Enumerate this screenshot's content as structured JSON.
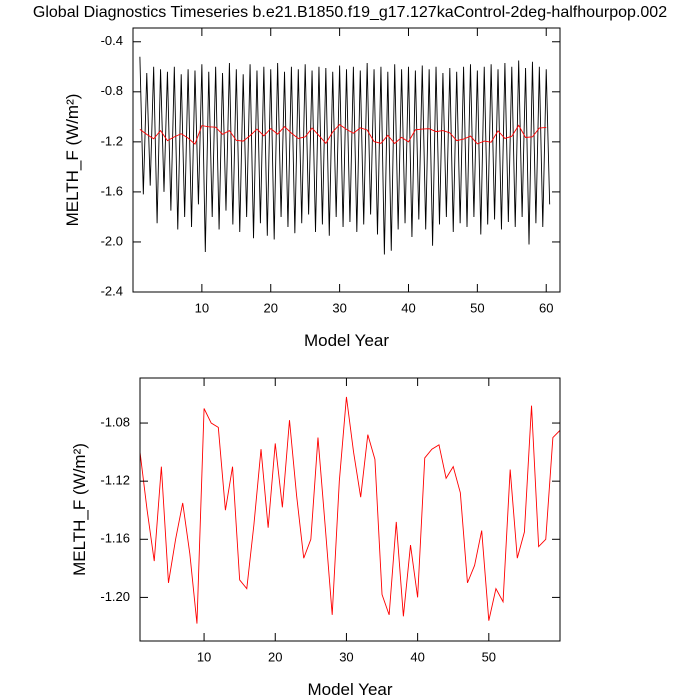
{
  "chart_data": [
    {
      "type": "line",
      "title": "Global Diagnostics Timeseries b.e21.B1850.f19_g17.127kaControl-2deg-halfhourpop.002",
      "xlabel": "Model Year",
      "ylabel": "MELTH_F (W/m²)",
      "xlim": [
        0,
        62
      ],
      "xticks": [
        10,
        20,
        30,
        40,
        50,
        60
      ],
      "ylim": [
        -2.4,
        -0.29
      ],
      "yticks": [
        -2.4,
        {
          "value": -2.0,
          "label": "-2.0"
        },
        -1.6,
        -1.2,
        -0.8,
        -0.4
      ],
      "series": [
        {
          "color": "#000000",
          "x": [
            1,
            1.5,
            2,
            2.5,
            3,
            3.5,
            4,
            4.5,
            5,
            5.5,
            6,
            6.5,
            7,
            7.5,
            8,
            8.5,
            9,
            9.5,
            10,
            10.5,
            11,
            11.5,
            12,
            12.5,
            13,
            13.5,
            14,
            14.5,
            15,
            15.5,
            16,
            16.5,
            17,
            17.5,
            18,
            18.5,
            19,
            19.5,
            20,
            20.5,
            21,
            21.5,
            22,
            22.5,
            23,
            23.5,
            24,
            24.5,
            25,
            25.5,
            26,
            26.5,
            27,
            27.5,
            28,
            28.5,
            29,
            29.5,
            30,
            30.5,
            31,
            31.5,
            32,
            32.5,
            33,
            33.5,
            34,
            34.5,
            35,
            35.5,
            36,
            36.5,
            37,
            37.5,
            38,
            38.5,
            39,
            39.5,
            40,
            40.5,
            41,
            41.5,
            42,
            42.5,
            43,
            43.5,
            44,
            44.5,
            45,
            45.5,
            46,
            46.5,
            47,
            47.5,
            48,
            48.5,
            49,
            49.5,
            50,
            50.5,
            51,
            51.5,
            52,
            52.5,
            53,
            53.5,
            54,
            54.5,
            55,
            55.5,
            56,
            56.5,
            57,
            57.5,
            58,
            58.5,
            59,
            59.5,
            60,
            60.5
          ],
          "values": [
            -0.52,
            -1.62,
            -0.65,
            -1.55,
            -0.6,
            -1.85,
            -0.62,
            -1.6,
            -0.64,
            -1.75,
            -0.6,
            -1.9,
            -0.66,
            -1.8,
            -0.62,
            -1.88,
            -0.63,
            -1.7,
            -0.58,
            -2.08,
            -0.64,
            -1.8,
            -0.6,
            -1.9,
            -0.65,
            -1.75,
            -0.57,
            -1.86,
            -0.62,
            -1.92,
            -0.66,
            -1.8,
            -0.58,
            -1.97,
            -0.63,
            -1.85,
            -0.6,
            -1.95,
            -0.62,
            -1.98,
            -0.57,
            -1.8,
            -0.64,
            -1.88,
            -0.6,
            -1.93,
            -0.62,
            -1.85,
            -0.58,
            -1.78,
            -0.63,
            -1.92,
            -0.6,
            -1.86,
            -0.61,
            -1.95,
            -0.64,
            -1.8,
            -0.59,
            -1.88,
            -0.62,
            -1.84,
            -0.6,
            -1.92,
            -0.63,
            -1.86,
            -0.57,
            -1.78,
            -0.62,
            -1.94,
            -0.6,
            -2.1,
            -0.64,
            -2.07,
            -0.58,
            -1.9,
            -0.62,
            -1.85,
            -0.6,
            -1.96,
            -0.63,
            -1.82,
            -0.59,
            -1.9,
            -0.62,
            -2.03,
            -0.6,
            -1.86,
            -0.65,
            -1.8,
            -0.61,
            -1.92,
            -0.64,
            -1.85,
            -0.6,
            -1.88,
            -0.58,
            -1.8,
            -0.63,
            -1.94,
            -0.6,
            -1.86,
            -0.58,
            -1.82,
            -0.62,
            -1.9,
            -0.57,
            -1.84,
            -0.6,
            -1.88,
            -0.55,
            -1.8,
            -0.61,
            -2.02,
            -0.56,
            -1.85,
            -0.6,
            -1.88,
            -0.62,
            -1.7
          ]
        },
        {
          "color": "#ff0000",
          "x": [
            1,
            2,
            3,
            4,
            5,
            6,
            7,
            8,
            9,
            10,
            11,
            12,
            13,
            14,
            15,
            16,
            17,
            18,
            19,
            20,
            21,
            22,
            23,
            24,
            25,
            26,
            27,
            28,
            29,
            30,
            31,
            32,
            33,
            34,
            35,
            36,
            37,
            38,
            39,
            40,
            41,
            42,
            43,
            44,
            45,
            46,
            47,
            48,
            49,
            50,
            51,
            52,
            53,
            54,
            55,
            56,
            57,
            58,
            59,
            60
          ],
          "values": [
            -1.1,
            -1.14,
            -1.175,
            -1.11,
            -1.19,
            -1.16,
            -1.135,
            -1.17,
            -1.218,
            -1.07,
            -1.08,
            -1.083,
            -1.14,
            -1.11,
            -1.188,
            -1.194,
            -1.15,
            -1.098,
            -1.152,
            -1.094,
            -1.138,
            -1.078,
            -1.13,
            -1.173,
            -1.16,
            -1.09,
            -1.15,
            -1.212,
            -1.12,
            -1.062,
            -1.1,
            -1.131,
            -1.088,
            -1.105,
            -1.198,
            -1.212,
            -1.148,
            -1.213,
            -1.164,
            -1.2,
            -1.104,
            -1.098,
            -1.095,
            -1.118,
            -1.11,
            -1.128,
            -1.19,
            -1.178,
            -1.154,
            -1.216,
            -1.194,
            -1.203,
            -1.112,
            -1.173,
            -1.155,
            -1.068,
            -1.165,
            -1.16,
            -1.09,
            -1.085
          ]
        }
      ]
    },
    {
      "type": "line",
      "xlabel": "Model Year",
      "ylabel": "MELTH_F (W/m²)",
      "xlim": [
        1,
        60
      ],
      "xticks": [
        10,
        20,
        30,
        40,
        50
      ],
      "ylim": [
        -1.23,
        -1.049
      ],
      "yticks": [
        {
          "value": -1.2,
          "label": "-1.20"
        },
        -1.16,
        -1.12,
        -1.08
      ],
      "series": [
        {
          "color": "#ff0000",
          "x": [
            1,
            2,
            3,
            4,
            5,
            6,
            7,
            8,
            9,
            10,
            11,
            12,
            13,
            14,
            15,
            16,
            17,
            18,
            19,
            20,
            21,
            22,
            23,
            24,
            25,
            26,
            27,
            28,
            29,
            30,
            31,
            32,
            33,
            34,
            35,
            36,
            37,
            38,
            39,
            40,
            41,
            42,
            43,
            44,
            45,
            46,
            47,
            48,
            49,
            50,
            51,
            52,
            53,
            54,
            55,
            56,
            57,
            58,
            59,
            60
          ],
          "values": [
            -1.1,
            -1.14,
            -1.175,
            -1.11,
            -1.19,
            -1.16,
            -1.135,
            -1.17,
            -1.218,
            -1.07,
            -1.08,
            -1.083,
            -1.14,
            -1.11,
            -1.188,
            -1.194,
            -1.15,
            -1.098,
            -1.152,
            -1.094,
            -1.138,
            -1.078,
            -1.13,
            -1.173,
            -1.16,
            -1.09,
            -1.15,
            -1.212,
            -1.12,
            -1.062,
            -1.1,
            -1.131,
            -1.088,
            -1.105,
            -1.198,
            -1.212,
            -1.148,
            -1.213,
            -1.164,
            -1.2,
            -1.104,
            -1.098,
            -1.095,
            -1.118,
            -1.11,
            -1.128,
            -1.19,
            -1.178,
            -1.154,
            -1.216,
            -1.194,
            -1.203,
            -1.112,
            -1.173,
            -1.155,
            -1.068,
            -1.165,
            -1.16,
            -1.09,
            -1.085
          ]
        }
      ]
    }
  ]
}
